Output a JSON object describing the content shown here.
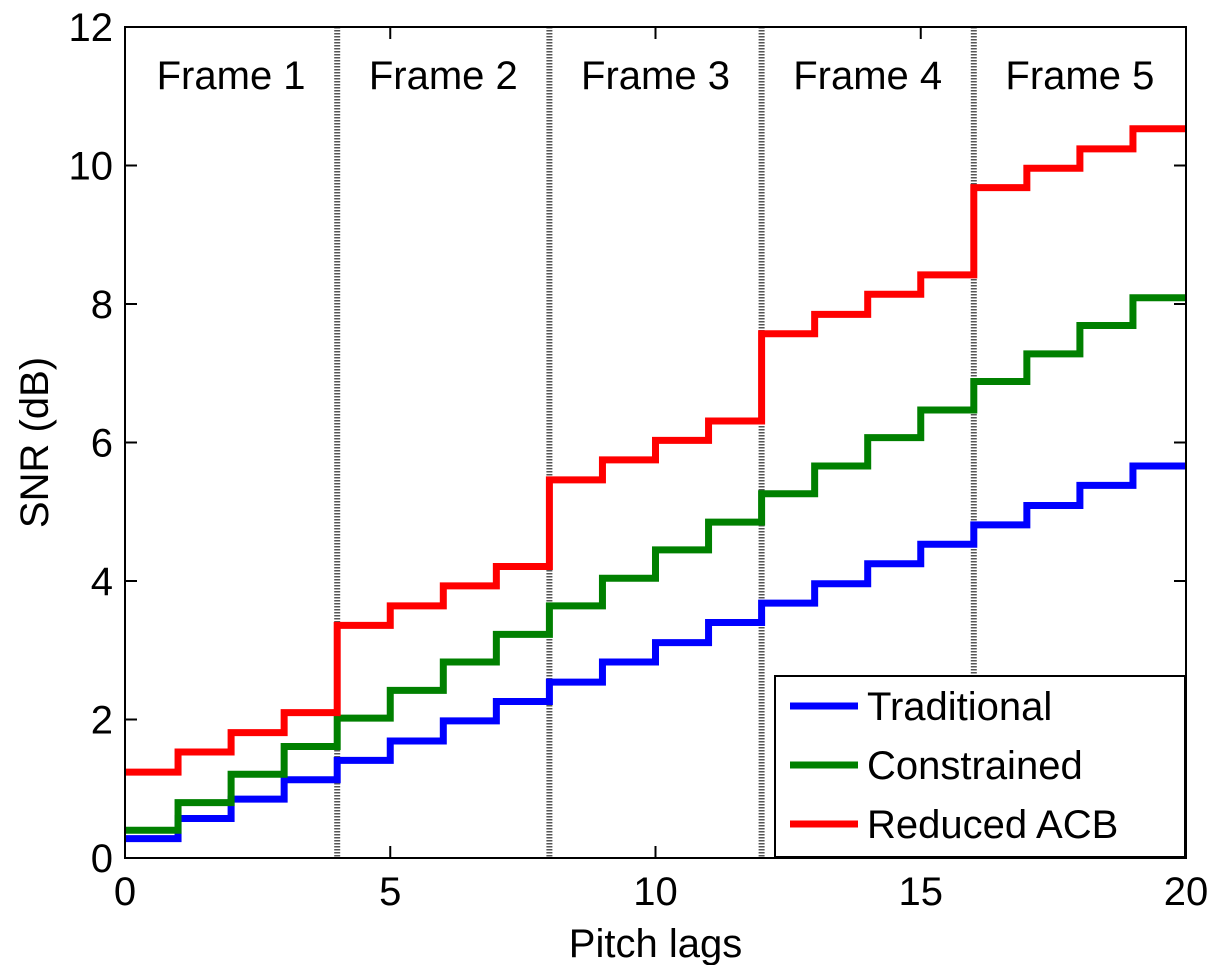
{
  "chart_data": {
    "type": "line",
    "title": "",
    "xlabel": "Pitch lags",
    "ylabel": "SNR (dB)",
    "xlim": [
      0,
      20
    ],
    "ylim": [
      0,
      12
    ],
    "xticks": [
      0,
      5,
      10,
      15,
      20
    ],
    "yticks": [
      0,
      2,
      4,
      6,
      8,
      10,
      12
    ],
    "grid": false,
    "legend_position": "bottom-right",
    "frame_boundaries": [
      4,
      8,
      12,
      16
    ],
    "frame_labels": [
      "Frame 1",
      "Frame 2",
      "Frame 3",
      "Frame 4",
      "Frame 5"
    ],
    "step": "post",
    "x": [
      0,
      1,
      2,
      3,
      4,
      5,
      6,
      7,
      8,
      9,
      10,
      11,
      12,
      13,
      14,
      15,
      16,
      17,
      18,
      19,
      20
    ],
    "series": [
      {
        "name": "Traditional",
        "color": "#0000ff",
        "values": [
          0.28,
          0.57,
          0.85,
          1.13,
          1.41,
          1.69,
          1.98,
          2.26,
          2.54,
          2.83,
          3.11,
          3.4,
          3.68,
          3.96,
          4.25,
          4.53,
          4.81,
          5.09,
          5.38,
          5.66,
          5.66
        ]
      },
      {
        "name": "Constrained",
        "color": "#008000",
        "values": [
          0.4,
          0.8,
          1.21,
          1.61,
          2.02,
          2.42,
          2.83,
          3.23,
          3.64,
          4.04,
          4.45,
          4.85,
          5.26,
          5.66,
          6.07,
          6.47,
          6.88,
          7.28,
          7.69,
          8.09,
          8.09
        ]
      },
      {
        "name": "Reduced ACB",
        "color": "#ff0000",
        "values": [
          1.24,
          1.53,
          1.81,
          2.1,
          3.36,
          3.64,
          3.93,
          4.21,
          5.46,
          5.75,
          6.03,
          6.31,
          7.57,
          7.85,
          8.14,
          8.42,
          9.68,
          9.96,
          10.24,
          10.53,
          10.53
        ]
      }
    ]
  }
}
